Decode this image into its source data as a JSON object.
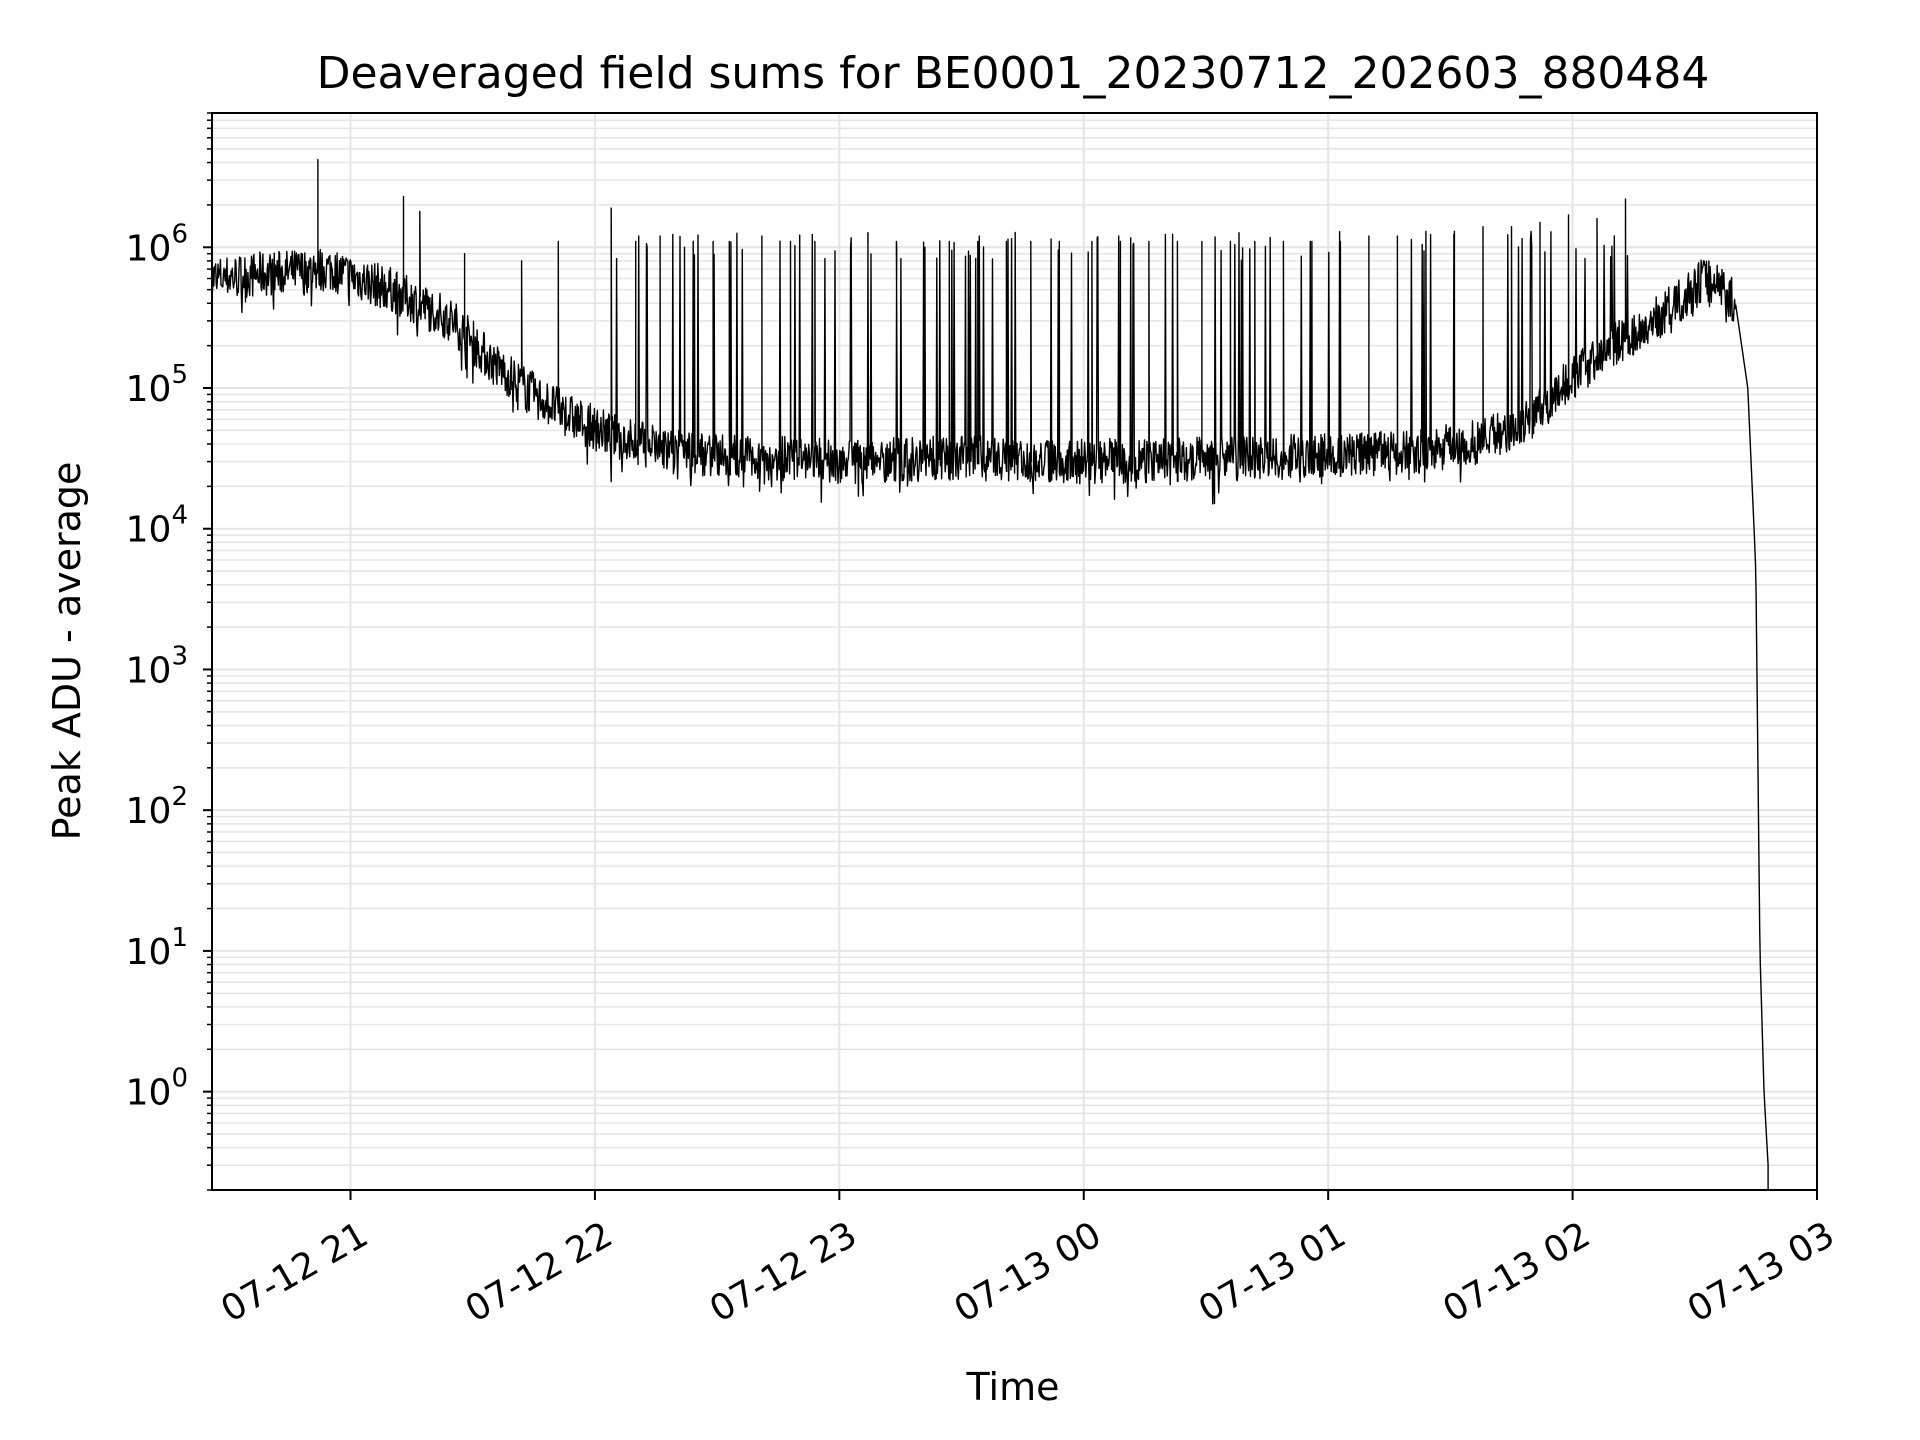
{
  "chart_data": {
    "type": "line",
    "title": "Deaveraged field sums for BE0001_20230712_202603_880484",
    "xlabel": "Time",
    "ylabel": "Peak ADU - average",
    "yscale": "log",
    "grid": true,
    "line_color": "#000000",
    "grid_color": "#e5e5e5",
    "xlim": [
      "2023-07-12 20:26",
      "2023-07-13 03:00"
    ],
    "ylim": [
      0.2,
      9000000
    ],
    "x_ticks": [
      "07-12 21",
      "07-12 22",
      "07-12 23",
      "07-13 00",
      "07-13 01",
      "07-13 02",
      "07-13 03"
    ],
    "x_tick_times": [
      "2023-07-12 21:00",
      "2023-07-12 22:00",
      "2023-07-12 23:00",
      "2023-07-13 00:00",
      "2023-07-13 01:00",
      "2023-07-13 02:00",
      "2023-07-13 03:00"
    ],
    "y_ticks": [
      {
        "base": "10",
        "exp": "0",
        "value": 1
      },
      {
        "base": "10",
        "exp": "1",
        "value": 10
      },
      {
        "base": "10",
        "exp": "2",
        "value": 100
      },
      {
        "base": "10",
        "exp": "3",
        "value": 1000
      },
      {
        "base": "10",
        "exp": "4",
        "value": 10000
      },
      {
        "base": "10",
        "exp": "5",
        "value": 100000
      },
      {
        "base": "10",
        "exp": "6",
        "value": 1000000
      }
    ],
    "series": [
      {
        "x": [
          "2023-07-12 20:26",
          "2023-07-12 20:40",
          "2023-07-12 20:55",
          "2023-07-12 21:10",
          "2023-07-12 21:25",
          "2023-07-12 21:35",
          "2023-07-12 21:45",
          "2023-07-12 21:55",
          "2023-07-12 22:05",
          "2023-07-12 22:20",
          "2023-07-12 22:40",
          "2023-07-12 23:00",
          "2023-07-12 23:30",
          "2023-07-13 00:00",
          "2023-07-13 00:30",
          "2023-07-13 01:00",
          "2023-07-13 01:20",
          "2023-07-13 01:35",
          "2023-07-13 01:50",
          "2023-07-13 02:00",
          "2023-07-13 02:10",
          "2023-07-13 02:20",
          "2023-07-13 02:28",
          "2023-07-13 02:32",
          "2023-07-13 02:36",
          "2023-07-13 02:40",
          "2023-07-13 02:43",
          "2023-07-13 02:45",
          "2023-07-13 02:46",
          "2023-07-13 02:47",
          "2023-07-13 02:48"
        ],
        "y": [
          600000,
          650000,
          700000,
          500000,
          300000,
          150000,
          90000,
          60000,
          45000,
          35000,
          32000,
          30000,
          32000,
          30000,
          31000,
          33000,
          35000,
          40000,
          60000,
          120000,
          200000,
          300000,
          450000,
          600000,
          550000,
          400000,
          100000,
          5000,
          10,
          1,
          0.3
        ],
        "spike_times": [
          "2023-07-12 20:52",
          "2023-07-12 21:13",
          "2023-07-12 21:17",
          "2023-07-12 21:28",
          "2023-07-12 21:42",
          "2023-07-12 21:51",
          "2023-07-12 22:04",
          "2023-07-12 22:10",
          "2023-07-12 22:16",
          "2023-07-12 22:22",
          "2023-07-12 22:29",
          "2023-07-12 22:33",
          "2023-07-12 22:41",
          "2023-07-12 22:48",
          "2023-07-12 22:54",
          "2023-07-12 23:07",
          "2023-07-12 23:14",
          "2023-07-12 23:21",
          "2023-07-12 23:27",
          "2023-07-12 23:34",
          "2023-07-12 23:41",
          "2023-07-12 23:47",
          "2023-07-12 23:54",
          "2023-07-13 00:02",
          "2023-07-13 00:09",
          "2023-07-13 00:16",
          "2023-07-13 00:23",
          "2023-07-13 00:29",
          "2023-07-13 00:36",
          "2023-07-13 00:42",
          "2023-07-13 00:49",
          "2023-07-13 00:56",
          "2023-07-13 01:03",
          "2023-07-13 01:10",
          "2023-07-13 01:17",
          "2023-07-13 01:24",
          "2023-07-13 01:31",
          "2023-07-13 01:38",
          "2023-07-13 01:45",
          "2023-07-13 01:52",
          "2023-07-13 01:59",
          "2023-07-13 02:06",
          "2023-07-13 02:13"
        ],
        "spike_values": [
          4200000,
          2300000,
          1800000,
          900000,
          800000,
          1100000,
          1900000,
          1100000,
          1200000,
          1000000,
          1100000,
          1100000,
          1200000,
          1100000,
          1100000,
          1100000,
          1100000,
          1000000,
          1100000,
          1100000,
          1100000,
          1100000,
          1100000,
          1100000,
          1100000,
          1100000,
          1100000,
          1100000,
          1100000,
          1100000,
          1100000,
          1100000,
          1100000,
          1200000,
          1200000,
          1300000,
          1300000,
          1400000,
          1400000,
          1500000,
          1700000,
          1600000,
          2200000
        ]
      }
    ]
  }
}
